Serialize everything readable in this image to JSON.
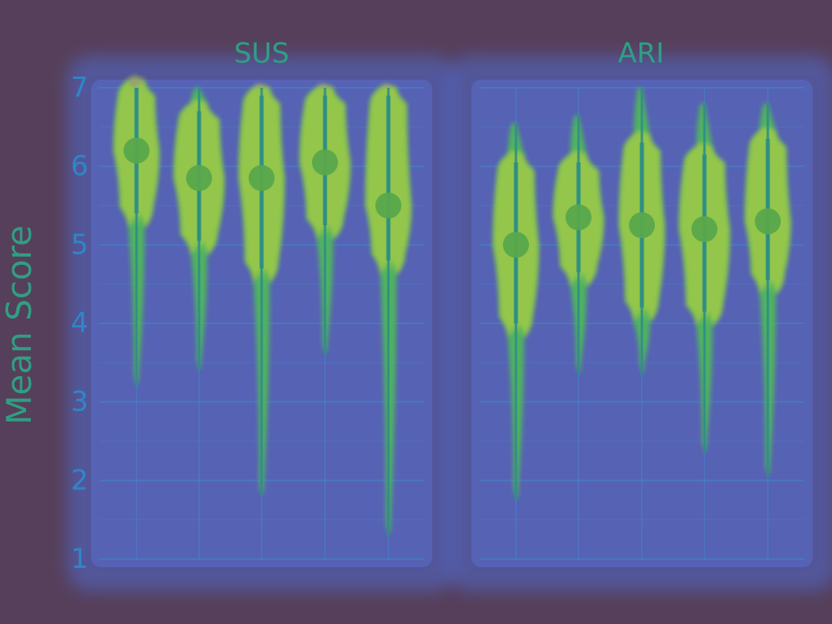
{
  "colors": {
    "background": "#563f5a",
    "panel_glow": "#4f73e6",
    "panel_fill": "#5f79e9",
    "grid": "#3d8fd5",
    "text": "#2f86c8",
    "violin_green": "#4fbe54",
    "violin_yellow": "#c4d63a",
    "violin_teal": "#2f9f9a",
    "mean_dot": "#58a84c",
    "line": "#2d8f86"
  },
  "chart_data": {
    "type": "violin",
    "ylabel": "Mean Score",
    "ylim": [
      1,
      7
    ],
    "yticks": [
      1,
      2,
      3,
      4,
      5,
      6,
      7
    ],
    "grid": true,
    "panels": [
      {
        "title": "SUS",
        "violins": [
          {
            "min": 3.2,
            "max": 7.0,
            "q_low": 5.4,
            "q_high": 7.0,
            "mean": 6.2
          },
          {
            "min": 3.4,
            "max": 7.0,
            "q_low": 5.05,
            "q_high": 6.7,
            "mean": 5.85
          },
          {
            "min": 1.8,
            "max": 7.0,
            "q_low": 4.7,
            "q_high": 6.9,
            "mean": 5.85
          },
          {
            "min": 3.6,
            "max": 7.0,
            "q_low": 5.25,
            "q_high": 6.9,
            "mean": 6.05
          },
          {
            "min": 1.3,
            "max": 7.0,
            "q_low": 4.8,
            "q_high": 6.9,
            "mean": 5.5
          }
        ]
      },
      {
        "title": "ARI",
        "violins": [
          {
            "min": 1.75,
            "max": 6.55,
            "q_low": 4.0,
            "q_high": 6.05,
            "mean": 5.0
          },
          {
            "min": 3.35,
            "max": 6.65,
            "q_low": 4.65,
            "q_high": 6.05,
            "mean": 5.35
          },
          {
            "min": 3.35,
            "max": 7.0,
            "q_low": 4.2,
            "q_high": 6.3,
            "mean": 5.25
          },
          {
            "min": 2.35,
            "max": 6.8,
            "q_low": 4.15,
            "q_high": 6.15,
            "mean": 5.2
          },
          {
            "min": 2.05,
            "max": 6.8,
            "q_low": 4.55,
            "q_high": 6.35,
            "mean": 5.3
          }
        ]
      }
    ]
  }
}
